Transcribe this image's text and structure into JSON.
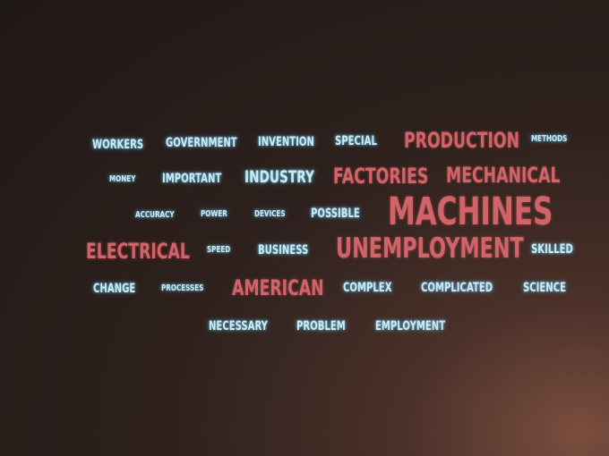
{
  "cloud": {
    "colors": {
      "highlight": "#d06468",
      "normal": "#c6ecf8",
      "background": "#2a1f1c"
    },
    "words": {
      "workers": "WORKERS",
      "government": "GOVERNMENT",
      "invention": "INVENTION",
      "special": "SPECIAL",
      "production": "PRODUCTION",
      "methods": "METHODS",
      "money": "MONEY",
      "important": "IMPORTANT",
      "industry": "INDUSTRY",
      "factories": "FACTORIES",
      "mechanical": "MECHANICAL",
      "accuracy": "ACCURACY",
      "power": "POWER",
      "devices": "DEVICES",
      "possible": "POSSIBLE",
      "machines": "MACHINES",
      "electrical": "ELECTRICAL",
      "speed": "SPEED",
      "business": "BUSINESS",
      "unemployment": "UNEMPLOYMENT",
      "skilled": "SKILLED",
      "change": "CHANGE",
      "processes": "PROCESSES",
      "american": "AMERICAN",
      "complex": "COMPLEX",
      "complicated": "COMPLICATED",
      "science": "SCIENCE",
      "necessary": "NECESSARY",
      "problem": "PROBLEM",
      "employment": "EMPLOYMENT"
    }
  }
}
